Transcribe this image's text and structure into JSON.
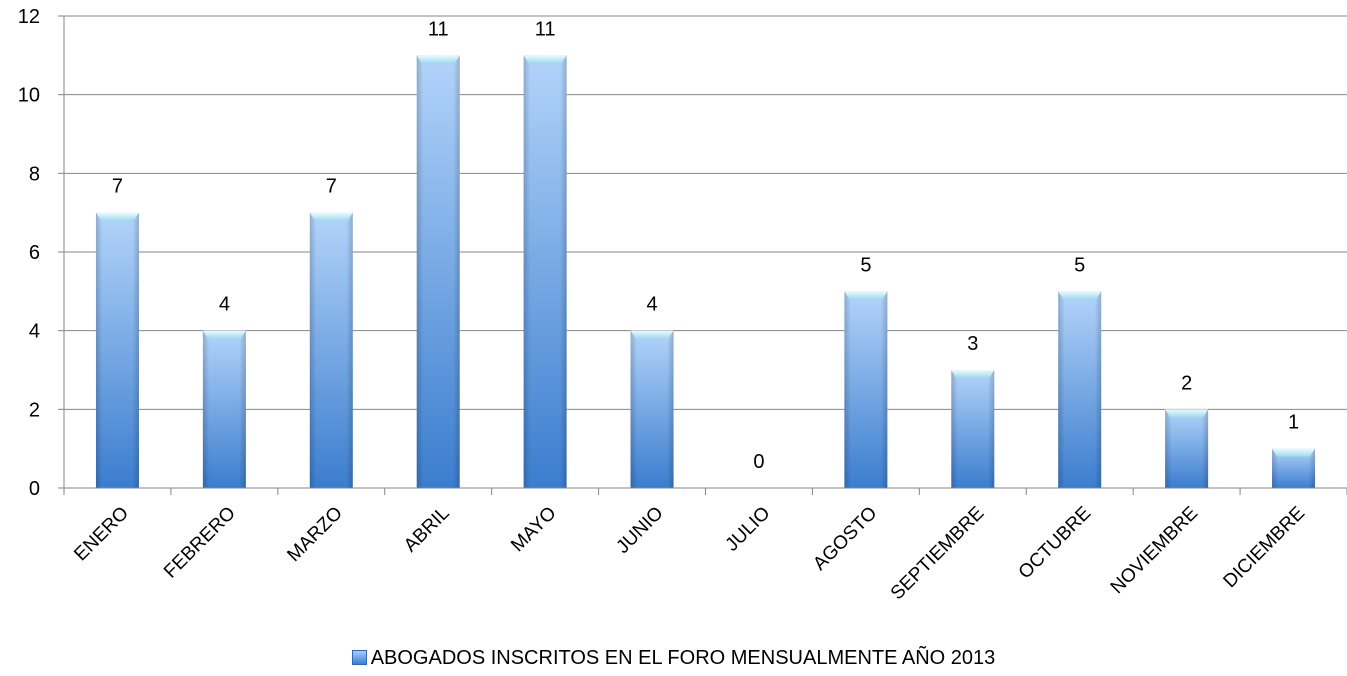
{
  "chart_data": {
    "type": "bar",
    "categories": [
      "ENERO",
      "FEBRERO",
      "MARZO",
      "ABRIL",
      "MAYO",
      "JUNIO",
      "JULIO",
      "AGOSTO",
      "SEPTIEMBRE",
      "OCTUBRE",
      "NOVIEMBRE",
      "DICIEMBRE"
    ],
    "series": [
      {
        "name": "ABOGADOS  INSCRITOS EN EL FORO MENSUALMENTE AÑO 2013",
        "values": [
          7,
          4,
          7,
          11,
          11,
          4,
          0,
          5,
          3,
          5,
          2,
          1
        ]
      }
    ],
    "ylim": [
      0,
      12
    ],
    "yticks": [
      0,
      2,
      4,
      6,
      8,
      10,
      12
    ],
    "grid": true,
    "data_labels": true,
    "legend_position": "bottom",
    "colors": {
      "bar_top": "#a9cdf7",
      "bar_bottom": "#3c7fd0",
      "bar_cap": "#d6f3fb",
      "grid": "#868686"
    }
  }
}
